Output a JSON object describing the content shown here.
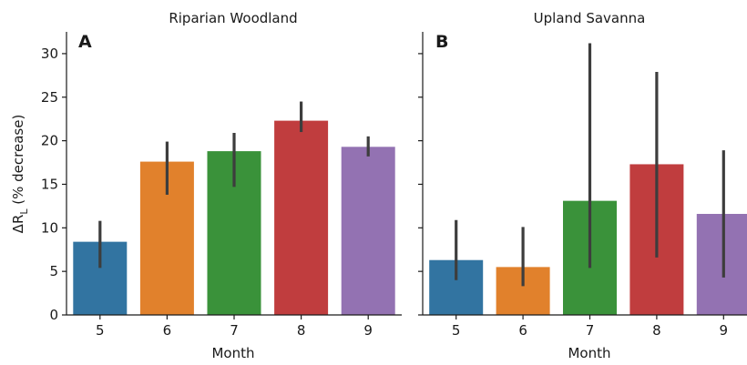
{
  "chart_data": [
    {
      "type": "bar",
      "title": "Riparian Woodland",
      "panel_label": "A",
      "xlabel": "Month",
      "ylabel": "ΔR",
      "ylabel_subscript": "L",
      "ylabel_suffix": " (% decrease)",
      "ylim": [
        0,
        32.5
      ],
      "yticks": [
        0,
        5,
        10,
        15,
        20,
        25,
        30
      ],
      "categories": [
        "5",
        "6",
        "7",
        "8",
        "9"
      ],
      "values": [
        8.4,
        17.6,
        18.8,
        22.3,
        19.3
      ],
      "error_low": [
        5.4,
        13.8,
        14.7,
        21.0,
        18.2
      ],
      "error_high": [
        10.8,
        19.9,
        20.9,
        24.5,
        20.5
      ],
      "colors": [
        "#3274a1",
        "#e1812c",
        "#3a923a",
        "#c03d3e",
        "#9372b2"
      ]
    },
    {
      "type": "bar",
      "title": "Upland Savanna",
      "panel_label": "B",
      "xlabel": "Month",
      "ylim": [
        0,
        32.5
      ],
      "yticks": [
        0,
        5,
        10,
        15,
        20,
        25,
        30
      ],
      "categories": [
        "5",
        "6",
        "7",
        "8",
        "9"
      ],
      "values": [
        6.3,
        5.5,
        13.1,
        17.3,
        11.6
      ],
      "error_low": [
        4.0,
        3.3,
        5.4,
        6.6,
        4.3
      ],
      "error_high": [
        10.9,
        10.1,
        31.2,
        27.9,
        18.9
      ],
      "colors": [
        "#3274a1",
        "#e1812c",
        "#3a923a",
        "#c03d3e",
        "#9372b2"
      ]
    }
  ]
}
